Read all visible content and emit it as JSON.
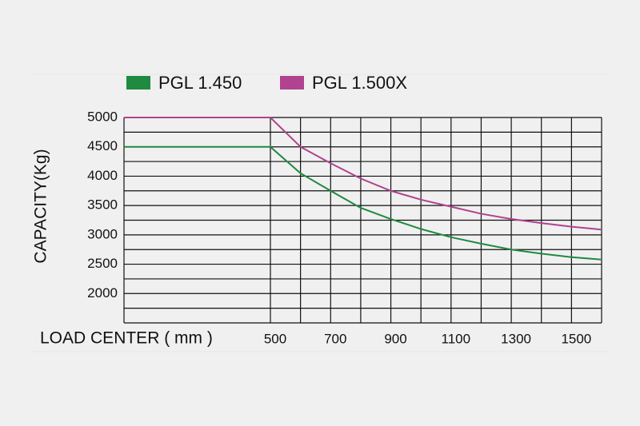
{
  "chart_data": {
    "type": "line",
    "y_label": "CAPACITY(Kg)",
    "x_label": "LOAD CENTER ( mm )",
    "x": [
      0,
      500,
      600,
      700,
      800,
      900,
      1000,
      1100,
      1200,
      1300,
      1400,
      1500,
      1600
    ],
    "series": [
      {
        "name": "PGL 1.450",
        "color": "#1f8a40",
        "values": [
          4500,
          4500,
          4050,
          3750,
          3460,
          3270,
          3100,
          2960,
          2850,
          2750,
          2680,
          2620,
          2580
        ]
      },
      {
        "name": "PGL 1.500X",
        "color": "#b0428f",
        "values": [
          5000,
          5000,
          4500,
          4220,
          3960,
          3750,
          3600,
          3480,
          3360,
          3270,
          3200,
          3140,
          3090
        ]
      }
    ],
    "xlim": [
      0,
      1600
    ],
    "xticks": [
      500,
      700,
      900,
      1100,
      1300,
      1500
    ],
    "xgrid": [
      500,
      600,
      700,
      800,
      900,
      1000,
      1100,
      1200,
      1300,
      1400,
      1500,
      1600
    ],
    "ylim": [
      1500,
      5000
    ],
    "yticks": [
      2000,
      2500,
      3000,
      3500,
      4000,
      4500,
      5000
    ],
    "ygrid": [
      1500,
      1750,
      2000,
      2250,
      2500,
      2750,
      3000,
      3250,
      3500,
      3750,
      4000,
      4250,
      4500,
      4750,
      5000
    ],
    "legend": "top"
  }
}
